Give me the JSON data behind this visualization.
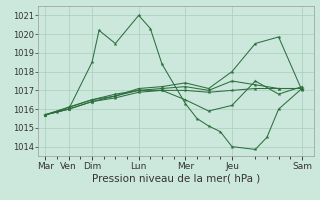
{
  "background_color": "#cce8dc",
  "grid_color": "#aaccbb",
  "line_color": "#2d6e3e",
  "xlabel": "Pression niveau de la mer( hPa )",
  "xlabel_fontsize": 7.5,
  "ylim": [
    1013.5,
    1021.5
  ],
  "yticks": [
    1014,
    1015,
    1016,
    1017,
    1018,
    1019,
    1020,
    1021
  ],
  "ytick_fontsize": 6,
  "xtick_major_labels": [
    "Mar",
    "Ven",
    "Dim",
    "Lun",
    "Mer",
    "Jeu",
    "Sam"
  ],
  "xtick_major_positions": [
    0,
    1,
    2,
    4,
    6,
    8,
    11
  ],
  "xtick_fontsize": 6.5,
  "xlim": [
    -0.3,
    11.5
  ],
  "lines": [
    {
      "x": [
        0,
        0.5,
        1,
        2,
        2.3,
        3,
        4,
        4.5,
        5,
        6,
        6.5,
        7,
        7.5,
        8,
        9,
        9.5,
        10,
        11
      ],
      "y": [
        1015.7,
        1015.85,
        1016.0,
        1018.5,
        1020.2,
        1019.5,
        1021.0,
        1020.3,
        1018.4,
        1016.3,
        1015.5,
        1015.1,
        1014.8,
        1014.0,
        1013.85,
        1014.5,
        1016.0,
        1017.1
      ]
    },
    {
      "x": [
        0,
        1,
        2,
        3,
        4,
        5,
        6,
        7,
        8,
        9,
        10,
        11
      ],
      "y": [
        1015.7,
        1016.0,
        1016.4,
        1016.6,
        1016.9,
        1017.0,
        1017.0,
        1016.9,
        1017.0,
        1017.1,
        1017.1,
        1017.1
      ]
    },
    {
      "x": [
        0,
        1,
        2,
        3,
        4,
        5,
        6,
        7,
        8,
        9,
        10,
        11
      ],
      "y": [
        1015.7,
        1016.1,
        1016.5,
        1016.7,
        1017.0,
        1017.1,
        1017.2,
        1017.0,
        1017.5,
        1017.3,
        1017.1,
        1017.1
      ]
    },
    {
      "x": [
        0,
        1,
        2,
        3,
        4,
        5,
        6,
        7,
        8,
        9,
        10,
        11
      ],
      "y": [
        1015.7,
        1016.0,
        1016.4,
        1016.7,
        1017.1,
        1017.2,
        1017.4,
        1017.1,
        1018.0,
        1019.5,
        1019.85,
        1017.0
      ]
    },
    {
      "x": [
        0,
        1,
        2,
        3,
        4,
        5,
        6,
        7,
        8,
        9,
        10,
        11
      ],
      "y": [
        1015.7,
        1016.1,
        1016.5,
        1016.8,
        1017.0,
        1017.0,
        1016.5,
        1015.9,
        1016.2,
        1017.5,
        1016.8,
        1017.2
      ]
    }
  ]
}
